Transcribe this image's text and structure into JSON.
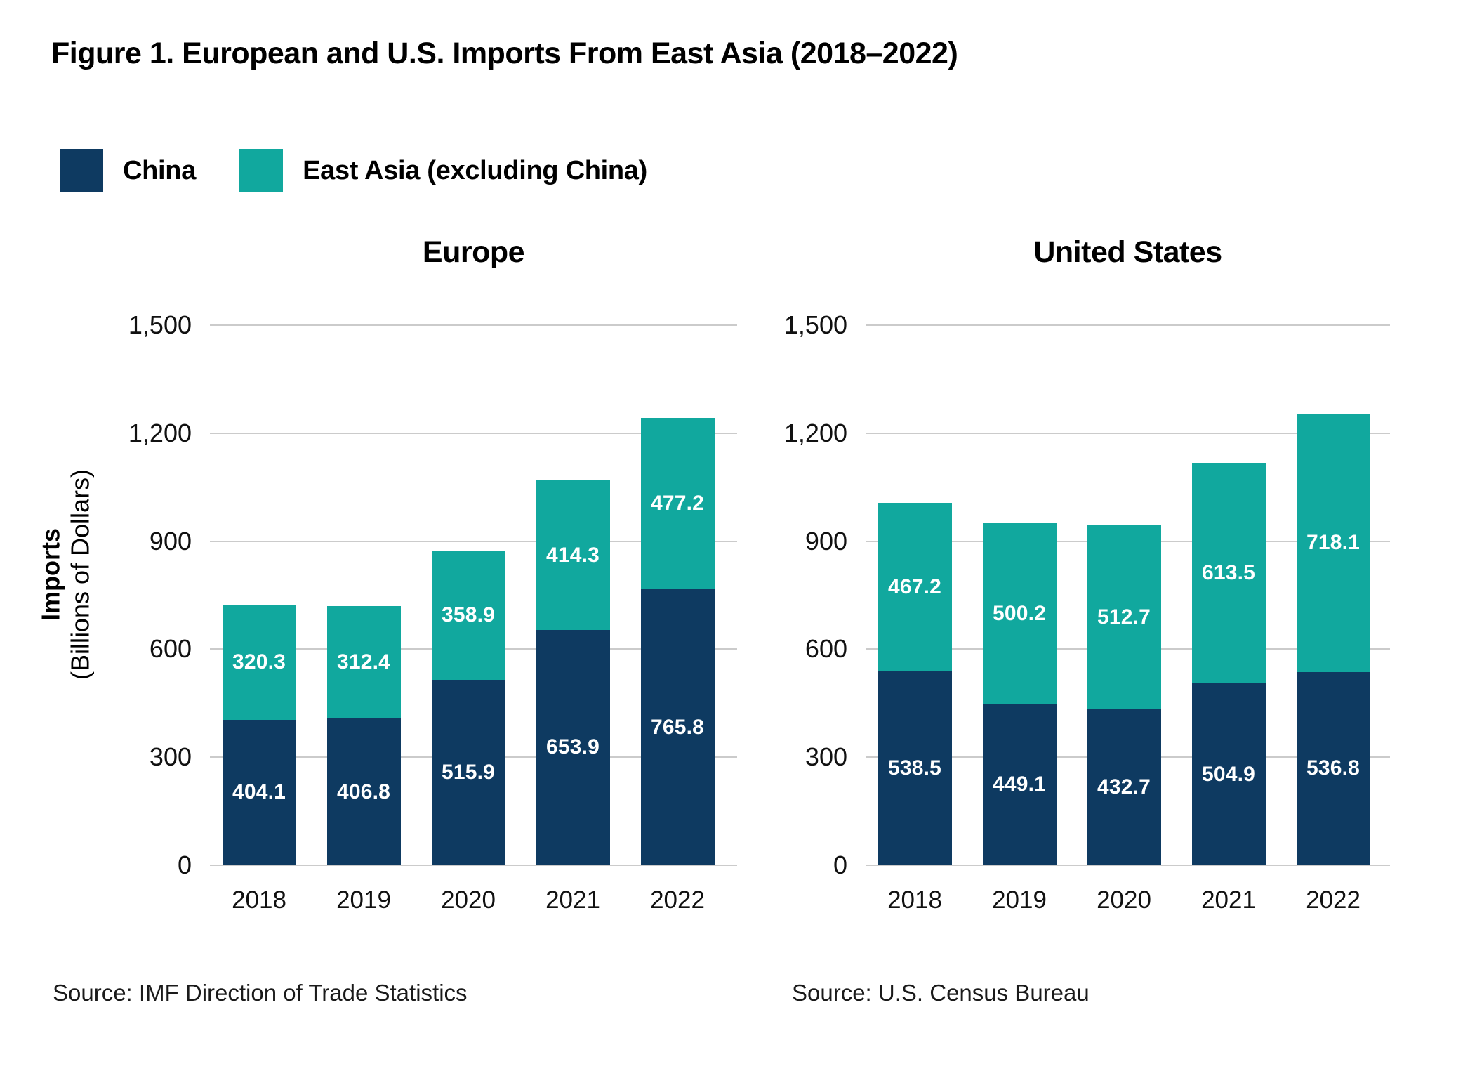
{
  "title": "Figure 1. European and U.S. Imports From East Asia (2018–2022)",
  "colors": {
    "china": "#0e3a61",
    "east_asia": "#11a89e",
    "gridline": "#cbcbcb"
  },
  "legend": [
    {
      "label": "China",
      "color_key": "china"
    },
    {
      "label": "East Asia (excluding China)",
      "color_key": "east_asia"
    }
  ],
  "y_axis": {
    "label_line1": "Imports",
    "label_line2": "(Billions of Dollars)",
    "ticks": [
      {
        "value": 1500,
        "label": "1,500"
      },
      {
        "value": 1200,
        "label": "1,200"
      },
      {
        "value": 900,
        "label": "900"
      },
      {
        "value": 600,
        "label": "600"
      },
      {
        "value": 300,
        "label": "300"
      },
      {
        "value": 0,
        "label": "0"
      }
    ]
  },
  "chart_data": [
    {
      "type": "bar",
      "stacked": true,
      "title": "Europe",
      "source": "Source: IMF Direction of Trade Statistics",
      "categories": [
        "2018",
        "2019",
        "2020",
        "2021",
        "2022"
      ],
      "series": [
        {
          "name": "China",
          "color_key": "china",
          "values": [
            404.1,
            406.8,
            515.9,
            653.9,
            765.8
          ]
        },
        {
          "name": "East Asia (excluding China)",
          "color_key": "east_asia",
          "values": [
            320.3,
            312.4,
            358.9,
            414.3,
            477.2
          ]
        }
      ],
      "ylim": [
        0,
        1500
      ],
      "grid": true,
      "legend_position": "top-left"
    },
    {
      "type": "bar",
      "stacked": true,
      "title": "United States",
      "source": "Source: U.S. Census Bureau",
      "categories": [
        "2018",
        "2019",
        "2020",
        "2021",
        "2022"
      ],
      "series": [
        {
          "name": "China",
          "color_key": "china",
          "values": [
            538.5,
            449.1,
            432.7,
            504.9,
            536.8
          ]
        },
        {
          "name": "East Asia (excluding China)",
          "color_key": "east_asia",
          "values": [
            467.2,
            500.2,
            512.7,
            613.5,
            718.1
          ]
        }
      ],
      "ylim": [
        0,
        1500
      ],
      "grid": true,
      "legend_position": "top-left"
    }
  ]
}
